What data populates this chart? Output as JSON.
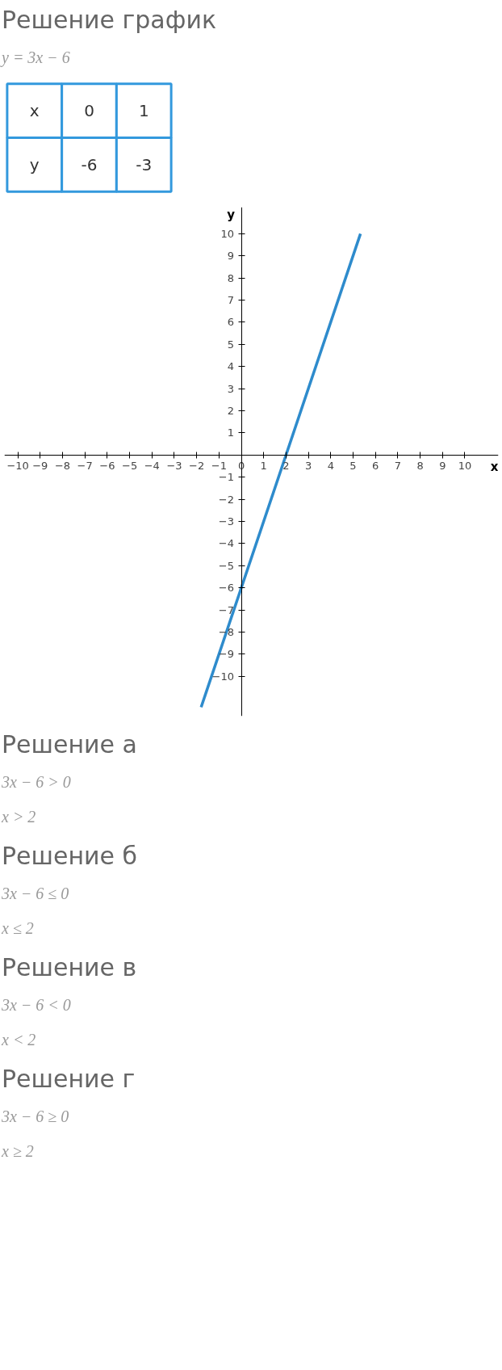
{
  "chart_data": [
    {
      "type": "other",
      "title": "Решение график",
      "subtitle": "y = 3x − 6",
      "y_categories": [
        "x",
        "y"
      ],
      "cell_labels": [
        [
          "0",
          "1"
        ],
        [
          "-6",
          "-3"
        ]
      ],
      "color": "#3399dd"
    },
    {
      "type": "line",
      "xlabel": "x",
      "ylabel": "y",
      "x": [
        -1.8,
        5.33
      ],
      "series": [
        {
          "color": "#2e8bcc",
          "values": [
            -11.4,
            10
          ]
        }
      ],
      "xlim": [
        -10.6,
        11.5
      ],
      "ylim": [
        -11.8,
        11.2
      ],
      "xticks": [
        -10,
        -9,
        -8,
        -7,
        -6,
        -5,
        -4,
        -3,
        -2,
        -1,
        0,
        1,
        2,
        3,
        4,
        5,
        6,
        7,
        8,
        9,
        10
      ],
      "yticks": [
        -10,
        -9,
        -8,
        -7,
        -6,
        -5,
        -4,
        -3,
        -2,
        -1,
        1,
        2,
        3,
        4,
        5,
        6,
        7,
        8,
        9,
        10
      ],
      "grid": false,
      "annotations": [
        "Решение а",
        "3x − 6 > 0",
        "x > 2",
        "Решение б",
        "3x − 6 ≤ 0",
        "x ≤ 2",
        "Решение в",
        "3x − 6 < 0",
        "x < 2",
        "Решение г",
        "3x − 6 ≥ 0",
        "x ≥ 2"
      ]
    }
  ]
}
